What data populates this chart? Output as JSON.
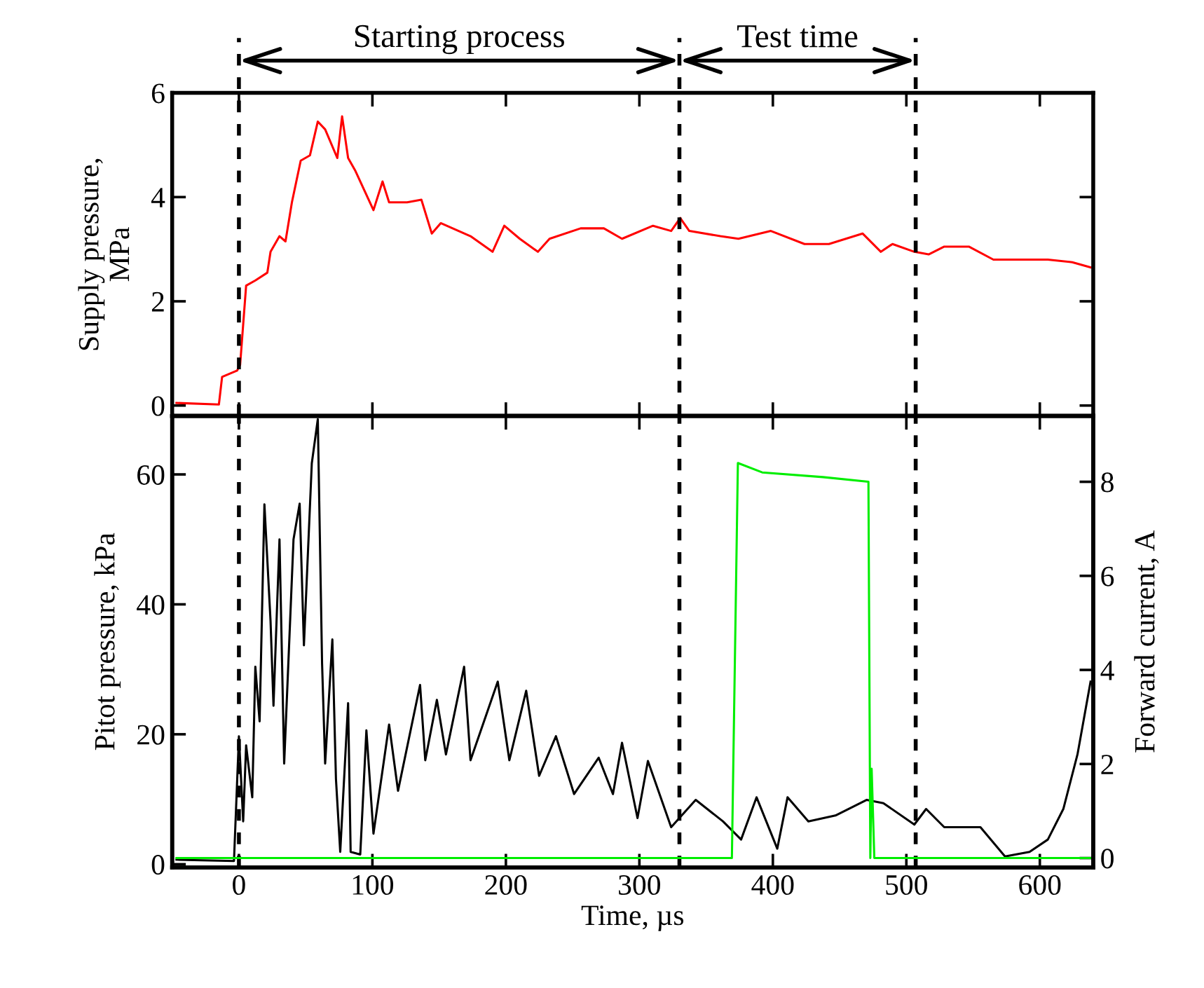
{
  "chart_data": [
    {
      "type": "line",
      "ylabel": "Supply pressure,\nMPa",
      "xlim": [
        -50,
        640
      ],
      "xticks": [
        0,
        100,
        200,
        300,
        400,
        500,
        600
      ],
      "ylim": [
        -0.2,
        6
      ],
      "yticks": [
        0,
        2,
        4,
        6
      ],
      "tick_labels": "y",
      "grid": false,
      "annotations": [
        "Starting process",
        "Test time"
      ],
      "ref_lines": [
        {
          "axis": "x",
          "value": 0,
          "color": "#000000",
          "line_style": "dashed"
        },
        {
          "axis": "x",
          "value": 330,
          "color": "#000000",
          "line_style": "dashed"
        },
        {
          "axis": "x",
          "value": 507,
          "color": "#000000",
          "line_style": "dashed"
        }
      ],
      "series": [
        {
          "color": "#ff0000",
          "x": [
            -46.8,
            -15,
            -12.6,
            -1.4,
            0.9,
            5.4,
            12.3,
            21.3,
            23.7,
            30.4,
            34.9,
            39.7,
            46.3,
            53.2,
            59.1,
            64.6,
            73.7,
            77.3,
            81.8,
            87.3,
            100.8,
            107.6,
            112.5,
            126,
            136.7,
            144.5,
            151.2,
            173.5,
            190,
            198.8,
            210.4,
            224,
            232.7,
            256,
            273.4,
            287,
            310.2,
            323.8,
            330.6,
            337.4,
            360.7,
            374.2,
            398.5,
            423.7,
            442,
            467.3,
            480.9,
            489.6,
            506,
            516.7,
            528.4,
            546.8,
            565.2,
            606,
            624.3,
            638
          ],
          "values": [
            0.05,
            0.02,
            0.55,
            0.67,
            0.78,
            2.3,
            2.4,
            2.55,
            2.95,
            3.25,
            3.15,
            3.9,
            4.7,
            4.8,
            5.45,
            5.3,
            4.75,
            5.55,
            4.75,
            4.5,
            3.75,
            4.3,
            3.9,
            3.9,
            3.95,
            3.3,
            3.5,
            3.25,
            2.95,
            3.45,
            3.2,
            2.95,
            3.2,
            3.4,
            3.4,
            3.2,
            3.45,
            3.35,
            3.6,
            3.35,
            3.25,
            3.2,
            3.35,
            3.1,
            3.1,
            3.3,
            2.95,
            3.1,
            2.95,
            2.9,
            3.05,
            3.05,
            2.8,
            2.8,
            2.75,
            2.65
          ]
        }
      ]
    },
    {
      "type": "line",
      "xlabel": "Time, µs",
      "ylabel": "Pitot pressure, kPa",
      "y2label": "Forward current, A",
      "xlim": [
        -50,
        640
      ],
      "xticks": [
        0,
        100,
        200,
        300,
        400,
        500,
        600
      ],
      "ylim": [
        -0.5,
        69
      ],
      "yticks": [
        0,
        20,
        40,
        60
      ],
      "y2lim": [
        -0.2,
        9.4
      ],
      "y2ticks": [
        0,
        2,
        4,
        6,
        8
      ],
      "grid": false,
      "ref_lines": [
        {
          "axis": "x",
          "value": 0,
          "color": "#000000",
          "line_style": "dashed"
        },
        {
          "axis": "x",
          "value": 330,
          "color": "#000000",
          "line_style": "dashed"
        },
        {
          "axis": "x",
          "value": 507,
          "color": "#000000",
          "line_style": "dashed"
        }
      ],
      "series": [
        {
          "color": "#000000",
          "x": [
            -46.8,
            -3.7,
            0,
            3.2,
            5.4,
            10,
            12.3,
            15.5,
            19.1,
            23.7,
            25.9,
            30.4,
            33.9,
            40.9,
            45.5,
            48.7,
            54.6,
            59.1,
            62.3,
            64.6,
            70,
            72.7,
            75.9,
            81.8,
            83.7,
            90.9,
            95.5,
            100.8,
            112.5,
            119.2,
            135.7,
            139.6,
            148.3,
            155.1,
            168.7,
            173.5,
            193.9,
            202.6,
            215.2,
            224.9,
            237.5,
            251.1,
            269.5,
            280.2,
            287,
            298.6,
            306.4,
            323.8,
            342.2,
            362.6,
            376.2,
            387.8,
            403.3,
            411,
            426.6,
            446.9,
            470.2,
            482.8,
            506,
            514.8,
            528.4,
            555.5,
            573.9,
            592.3,
            606,
            617.6,
            628.2,
            638
          ],
          "values": [
            0.7,
            0.5,
            19.7,
            6.6,
            18.3,
            10.3,
            30.4,
            22,
            55.4,
            37.4,
            24.4,
            50,
            15.5,
            50,
            55.5,
            33.7,
            61.7,
            68.5,
            30.9,
            15.5,
            34.6,
            13.1,
            1.9,
            24.8,
            1.9,
            1.5,
            20.6,
            4.7,
            21.5,
            11.3,
            27.6,
            16,
            25.3,
            16.9,
            30.4,
            16,
            28.1,
            16,
            26.7,
            13.6,
            19.7,
            10.8,
            16.4,
            10.8,
            18.7,
            7.1,
            15.9,
            5.7,
            9.9,
            6.6,
            3.8,
            10.3,
            2.4,
            10.3,
            6.6,
            7.5,
            9.9,
            9.4,
            6.1,
            8.5,
            5.7,
            5.7,
            1.2,
            1.9,
            3.8,
            8.5,
            16.9,
            28.1
          ]
        },
        {
          "color": "#00ee00",
          "axis": "y2",
          "x": [
            -46.8,
            369.3,
            373.8,
            392,
            437.5,
            471.6,
            473,
            474,
            476,
            637.6
          ],
          "values": [
            0,
            0,
            8.4,
            8.2,
            8.1,
            8.0,
            0,
            1.9,
            0,
            0
          ]
        }
      ]
    }
  ]
}
